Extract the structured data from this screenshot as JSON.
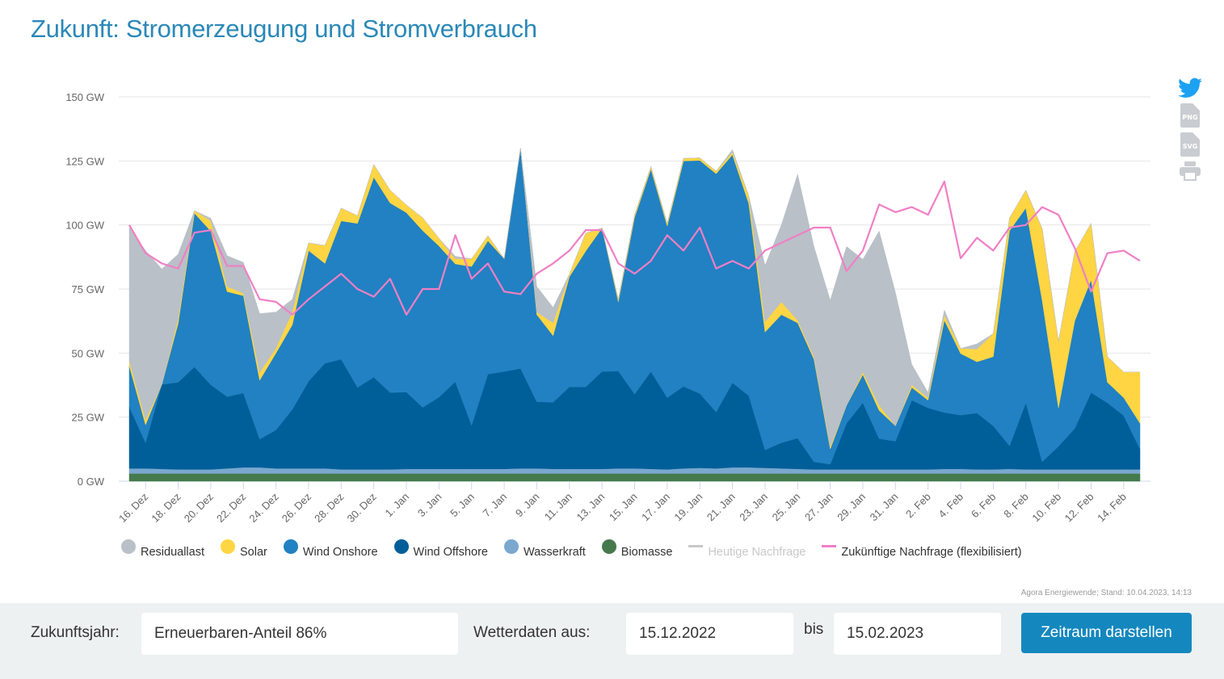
{
  "page": {
    "title": "Zukunft: Stromerzeugung und Stromverbrauch",
    "share_icons": [
      {
        "name": "twitter-icon",
        "label": "Twitter"
      },
      {
        "name": "png-download-icon",
        "label": "PNG"
      },
      {
        "name": "svg-download-icon",
        "label": "SVG"
      },
      {
        "name": "print-icon",
        "label": "Drucken"
      }
    ],
    "source": "Agora Energiewende; Stand: 10.04.2023, 14:13"
  },
  "controls": {
    "year_label": "Zukunftsjahr:",
    "year_value": "Erneuerbaren-Anteil 86%",
    "weather_label": "Wetterdaten aus:",
    "date_from": "15.12.2022",
    "bis_label": "bis",
    "date_to": "15.02.2023",
    "submit_label": "Zeitraum darstellen"
  },
  "chart_data": {
    "type": "area",
    "stacked": true,
    "title": "",
    "xlabel": "",
    "ylabel": "",
    "ylim": [
      0,
      150
    ],
    "y_unit": "GW",
    "y_ticks": [
      "0 GW",
      "25 GW",
      "50 GW",
      "75 GW",
      "100 GW",
      "125 GW",
      "150 GW"
    ],
    "x_start": "15.12.2022",
    "x_end": "15.02.2023",
    "x_tick_labels": [
      "16. Dez",
      "18. Dez",
      "20. Dez",
      "22. Dez",
      "24. Dez",
      "26. Dez",
      "28. Dez",
      "30. Dez",
      "1. Jan",
      "3. Jan",
      "5. Jan",
      "7. Jan",
      "9. Jan",
      "11. Jan",
      "13. Jan",
      "15. Jan",
      "17. Jan",
      "19. Jan",
      "21. Jan",
      "23. Jan",
      "25. Jan",
      "27. Jan",
      "29. Jan",
      "31. Jan",
      "2. Feb",
      "4. Feb",
      "6. Feb",
      "8. Feb",
      "10. Feb",
      "12. Feb",
      "14. Feb"
    ],
    "grid": true,
    "legend_position": "bottom",
    "series": [
      {
        "name": "Biomasse",
        "color": "#457a4d",
        "kind": "area",
        "values": [
          3,
          3,
          3,
          3,
          3,
          3,
          3,
          3,
          3,
          3,
          3,
          3,
          3,
          3,
          3,
          3,
          3,
          3,
          3,
          3,
          3,
          3,
          3,
          3,
          3,
          3,
          3,
          3,
          3,
          3,
          3,
          3,
          3,
          3,
          3,
          3,
          3,
          3,
          3,
          3,
          3,
          3,
          3,
          3,
          3,
          3,
          3,
          3,
          3,
          3,
          3,
          3,
          3,
          3,
          3,
          3,
          3,
          3,
          3,
          3,
          3,
          3,
          3
        ]
      },
      {
        "name": "Wasserkraft",
        "color": "#7aa8cf",
        "kind": "area",
        "values": [
          2,
          2,
          1.8,
          1.6,
          1.6,
          1.6,
          2,
          2.4,
          2.4,
          2,
          2,
          2,
          2,
          1.6,
          1.6,
          1.6,
          1.6,
          1.8,
          1.8,
          1.8,
          1.8,
          1.8,
          1.8,
          1.8,
          2,
          2,
          1.8,
          1.8,
          1.8,
          1.8,
          2,
          2,
          1.8,
          1.6,
          2,
          2.2,
          2,
          2.4,
          2.4,
          2.2,
          2,
          1.8,
          1.6,
          1.6,
          1.6,
          1.6,
          1.6,
          1.6,
          1.6,
          1.6,
          1.8,
          1.8,
          1.6,
          1.6,
          1.8,
          1.6,
          1.6,
          1.6,
          1.6,
          1.6,
          1.6,
          1.6,
          1.6
        ]
      },
      {
        "name": "Wind Offshore",
        "color": "#005f99",
        "kind": "area",
        "values": [
          24,
          10,
          33,
          34,
          40,
          33,
          28,
          29,
          11,
          15,
          23,
          34,
          41,
          43,
          32,
          36,
          30,
          30,
          24,
          28,
          34,
          17,
          37,
          38,
          39,
          26,
          26,
          32,
          32,
          38,
          38,
          29,
          38,
          28,
          32,
          29,
          22,
          33,
          28,
          7,
          10,
          12,
          3,
          2,
          18,
          26,
          12,
          11,
          27,
          24,
          22,
          21,
          22,
          17,
          9,
          26,
          3,
          9,
          16,
          30,
          26,
          21,
          8
        ]
      },
      {
        "name": "Wind Onshore",
        "color": "#2181c2",
        "kind": "area",
        "values": [
          16,
          7,
          0,
          23,
          60,
          60,
          41,
          38,
          23,
          30,
          33,
          51,
          39,
          54,
          64,
          78,
          74,
          70,
          69,
          59,
          46,
          62,
          52,
          44,
          86,
          34,
          26,
          43,
          53,
          56,
          27,
          69,
          79,
          67,
          88,
          91,
          93,
          89,
          75,
          46,
          50,
          45,
          40,
          6,
          7,
          11,
          11,
          6,
          5,
          3,
          36,
          24,
          20,
          27,
          84,
          76,
          63,
          15,
          42,
          44,
          8,
          7,
          10
        ]
      },
      {
        "name": "Solar",
        "color": "#ffd543",
        "kind": "area",
        "values": [
          2,
          2,
          0,
          2,
          1,
          4,
          2,
          1,
          3,
          2,
          5,
          3,
          7,
          5,
          3,
          5,
          5,
          3,
          5,
          3,
          2,
          3,
          2,
          0,
          0,
          1,
          5,
          1,
          7,
          0,
          1,
          1,
          1,
          1,
          1,
          1,
          1,
          1,
          3,
          4,
          5,
          1,
          1,
          1,
          0,
          1,
          2,
          0,
          1,
          1,
          2,
          2,
          5,
          9,
          5,
          7,
          28,
          26,
          27,
          22,
          10,
          10,
          20
        ]
      },
      {
        "name": "Residuallast",
        "color": "#b9c0c7",
        "kind": "area",
        "values": [
          52,
          66,
          45,
          25,
          0,
          1,
          12,
          12,
          23,
          14,
          5,
          0,
          0,
          0,
          0,
          0,
          0,
          0,
          0,
          0,
          1,
          0,
          0,
          0,
          0,
          10,
          6,
          0,
          0,
          0,
          0,
          0,
          0,
          0,
          0,
          0,
          0,
          1,
          0,
          22,
          30,
          57,
          43,
          57,
          62,
          44,
          68,
          52,
          8,
          2,
          2,
          0,
          2,
          0,
          0,
          0,
          0,
          0,
          0,
          0,
          0,
          0,
          0
        ]
      },
      {
        "name": "Heutige Nachfrage",
        "color": "#c8c8c8",
        "kind": "line",
        "hidden": true,
        "values": []
      },
      {
        "name": "Zukünftige Nachfrage (flexibilisiert)",
        "color": "#f07fc5",
        "kind": "line",
        "values": [
          100,
          89,
          85,
          83,
          97,
          98,
          84,
          84,
          71,
          70,
          65,
          71,
          76,
          81,
          75,
          72,
          79,
          65,
          75,
          75,
          96,
          79,
          85,
          74,
          73,
          81,
          85,
          90,
          98,
          98,
          85,
          81,
          86,
          96,
          90,
          99,
          83,
          86,
          83,
          90,
          93,
          96,
          99,
          99,
          82,
          90,
          108,
          105,
          107,
          104,
          117,
          87,
          95,
          90,
          99,
          100,
          107,
          104,
          91,
          74,
          89,
          90,
          86
        ]
      }
    ]
  },
  "legend": [
    {
      "label": "Residuallast",
      "color": "#b9c0c7",
      "kind": "dot",
      "active": true
    },
    {
      "label": "Solar",
      "color": "#ffd543",
      "kind": "dot",
      "active": true
    },
    {
      "label": "Wind Onshore",
      "color": "#2181c2",
      "kind": "dot",
      "active": true
    },
    {
      "label": "Wind Offshore",
      "color": "#005f99",
      "kind": "dot",
      "active": true
    },
    {
      "label": "Wasserkraft",
      "color": "#7aa8cf",
      "kind": "dot",
      "active": true
    },
    {
      "label": "Biomasse",
      "color": "#457a4d",
      "kind": "dot",
      "active": true
    },
    {
      "label": "Heutige Nachfrage",
      "color": "#c8c8c8",
      "kind": "line",
      "active": false
    },
    {
      "label": "Zukünftige Nachfrage (flexibilisiert)",
      "color": "#f07fc5",
      "kind": "line",
      "active": true
    }
  ]
}
